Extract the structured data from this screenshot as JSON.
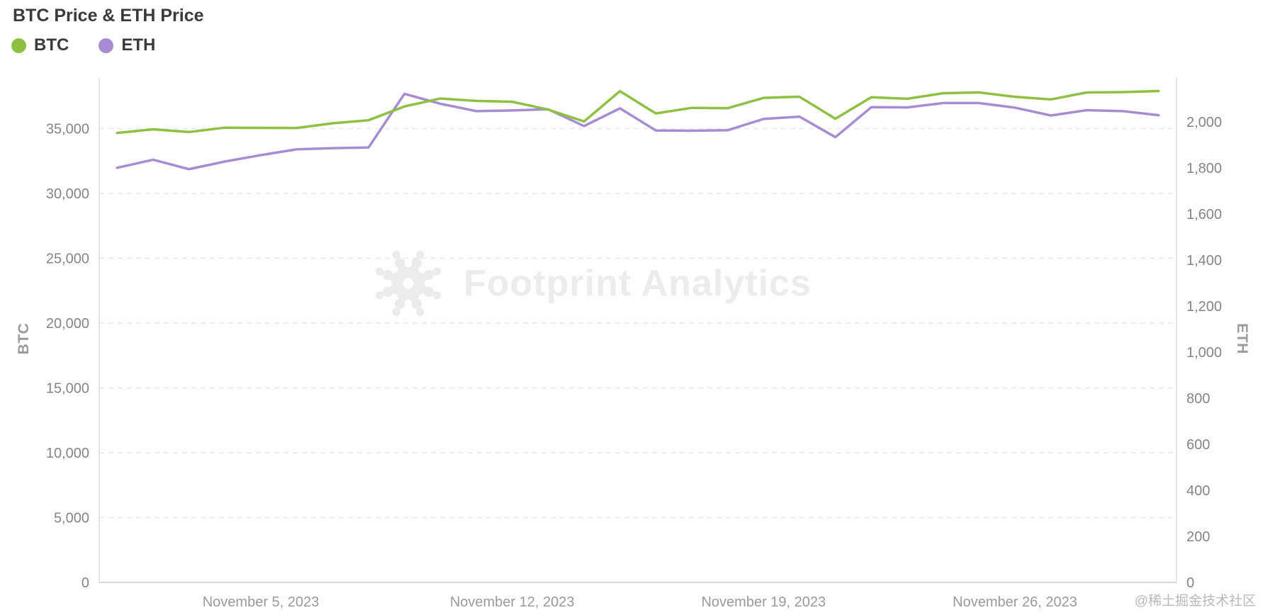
{
  "title": "BTC Price & ETH Price",
  "legend": [
    {
      "label": "BTC",
      "color": "#8dc043"
    },
    {
      "label": "ETH",
      "color": "#a78cd4"
    }
  ],
  "watermark": {
    "text": "Footprint Analytics"
  },
  "footer_tag": "@稀土掘金技术社区",
  "chart_data": {
    "type": "line",
    "title": "BTC Price & ETH Price",
    "left_axis_title": "BTC",
    "right_axis_title": "ETH",
    "grid": "dashed horizontal",
    "legend_position": "top-left",
    "x": [
      "2023-11-01",
      "2023-11-02",
      "2023-11-03",
      "2023-11-04",
      "2023-11-05",
      "2023-11-06",
      "2023-11-07",
      "2023-11-08",
      "2023-11-09",
      "2023-11-10",
      "2023-11-11",
      "2023-11-12",
      "2023-11-13",
      "2023-11-14",
      "2023-11-15",
      "2023-11-16",
      "2023-11-17",
      "2023-11-18",
      "2023-11-19",
      "2023-11-20",
      "2023-11-21",
      "2023-11-22",
      "2023-11-23",
      "2023-11-24",
      "2023-11-25",
      "2023-11-26",
      "2023-11-27",
      "2023-11-28",
      "2023-11-29",
      "2023-11-30"
    ],
    "x_tick_indices": [
      4,
      11,
      18,
      25
    ],
    "x_tick_labels": [
      "November 5, 2023",
      "November 12, 2023",
      "November 19, 2023",
      "November 26, 2023"
    ],
    "left_ticks": [
      0,
      5000,
      10000,
      15000,
      20000,
      25000,
      30000,
      35000
    ],
    "right_ticks": [
      0,
      200,
      400,
      600,
      800,
      1000,
      1200,
      1400,
      1600,
      1800,
      2000
    ],
    "ylim_left": [
      0,
      38900
    ],
    "ylim_right": [
      0,
      2190
    ],
    "series": [
      {
        "name": "BTC",
        "axis": "left",
        "color": "#8dc043",
        "values": [
          34657,
          34938,
          34731,
          35065,
          35046,
          35042,
          35401,
          35639,
          36701,
          37310,
          37131,
          37064,
          36462,
          35544,
          37880,
          36163,
          36595,
          36568,
          37362,
          37449,
          35754,
          37410,
          37295,
          37718,
          37784,
          37447,
          37244,
          37780,
          37810,
          37890
        ]
      },
      {
        "name": "ETH",
        "axis": "right",
        "color": "#a78cd4",
        "values": [
          1800,
          1835,
          1794,
          1827,
          1855,
          1880,
          1885,
          1888,
          2121,
          2078,
          2046,
          2049,
          2054,
          1981,
          2058,
          1962,
          1961,
          1963,
          2012,
          2022,
          1933,
          2063,
          2062,
          2081,
          2081,
          2061,
          2027,
          2050,
          2046,
          2028
        ]
      }
    ]
  }
}
